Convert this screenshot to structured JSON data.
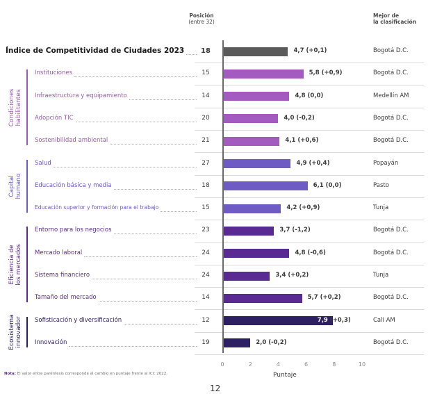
{
  "header": {
    "position_title": "Posición",
    "position_subtitle": "(entre 32)",
    "best_title_1": "Mejor de",
    "best_title_2": "la clasificación"
  },
  "groups": [
    {
      "label_1": "Condiciones",
      "label_2": "habilitantes",
      "color": "#9b59b6"
    },
    {
      "label_1": "Capital",
      "label_2": "humano",
      "color": "#6a5acd"
    },
    {
      "label_1": "Eficiencia de",
      "label_2": "los mercados",
      "color": "#5b2c8f"
    },
    {
      "label_1": "Ecosistema",
      "label_2": "innovador",
      "color": "#2a1d5c"
    }
  ],
  "chart_data": {
    "type": "bar",
    "orientation": "horizontal",
    "xlabel": "Puntaje",
    "xlim": [
      0,
      10
    ],
    "xticks": [
      0,
      2,
      4,
      6,
      8,
      10
    ],
    "rows": [
      {
        "label": "Índice de Competitividad de Ciudades 2023",
        "rank": "18",
        "value": 4.7,
        "value_text": "4,7",
        "change": "(+0,1)",
        "best": "Bogotá D.C.",
        "color": "#5a5a5a",
        "label_color": "#1a1a1a",
        "bold": true
      },
      {
        "label": "Instituciones",
        "rank": "15",
        "value": 5.8,
        "value_text": "5,8",
        "change": "(+0,9)",
        "best": "Bogotá D.C.",
        "color": "#a45bc0",
        "label_color": "#9b59b6"
      },
      {
        "label": "Infraestructura y equipamiento",
        "rank": "14",
        "value": 4.8,
        "value_text": "4,8",
        "change": "(0,0)",
        "best": "Medellín AM",
        "color": "#a45bc0",
        "label_color": "#9b59b6"
      },
      {
        "label": "Adopción TIC",
        "rank": "20",
        "value": 4.0,
        "value_text": "4,0",
        "change": "(-0,2)",
        "best": "Bogotá D.C.",
        "color": "#a45bc0",
        "label_color": "#9b59b6"
      },
      {
        "label": "Sostenibilidad ambiental",
        "rank": "21",
        "value": 4.1,
        "value_text": "4,1",
        "change": "(+0,6)",
        "best": "Bogotá D.C.",
        "color": "#a45bc0",
        "label_color": "#9b59b6"
      },
      {
        "label": "Salud",
        "rank": "27",
        "value": 4.9,
        "value_text": "4,9",
        "change": "(+0,4)",
        "best": "Popayán",
        "color": "#6e5bc4",
        "label_color": "#6a5acd"
      },
      {
        "label": "Educación básica y media",
        "rank": "18",
        "value": 6.1,
        "value_text": "6,1",
        "change": "(0,0)",
        "best": "Pasto",
        "color": "#6e5bc4",
        "label_color": "#6a5acd"
      },
      {
        "label": "Educación superior y formación para el trabajo",
        "rank": "15",
        "value": 4.2,
        "value_text": "4,2",
        "change": "(+0,9)",
        "best": "Tunja",
        "color": "#6e5bc4",
        "label_color": "#6a5acd"
      },
      {
        "label": "Entorno para los negocios",
        "rank": "23",
        "value": 3.7,
        "value_text": "3,7",
        "change": "(-1,2)",
        "best": "Bogotá D.C.",
        "color": "#5a2a93",
        "label_color": "#5b2c8f"
      },
      {
        "label": "Mercado laboral",
        "rank": "24",
        "value": 4.8,
        "value_text": "4,8",
        "change": "(-0,6)",
        "best": "Bogotá D.C.",
        "color": "#5a2a93",
        "label_color": "#5b2c8f"
      },
      {
        "label": "Sistema financiero",
        "rank": "24",
        "value": 3.4,
        "value_text": "3,4",
        "change": "(+0,2)",
        "best": "Tunja",
        "color": "#5a2a93",
        "label_color": "#5b2c8f"
      },
      {
        "label": "Tamaño del mercado",
        "rank": "14",
        "value": 5.7,
        "value_text": "5,7",
        "change": "(+0,2)",
        "best": "Bogotá D.C.",
        "color": "#5a2a93",
        "label_color": "#5b2c8f"
      },
      {
        "label": "Sofisticación y diversificación",
        "rank": "12",
        "value": 7.9,
        "value_text": "7,9",
        "change": "(+0,3)",
        "best": "Cali AM",
        "color": "#2c1f63",
        "label_color": "#2a1d5c",
        "value_inside": true
      },
      {
        "label": "Innovación",
        "rank": "19",
        "value": 2.0,
        "value_text": "2,0",
        "change": "(-0,2)",
        "best": "Bogotá D.C.",
        "color": "#2c1f63",
        "label_color": "#2a1d5c"
      }
    ]
  },
  "footnote_bold": "Nota:",
  "footnote": "El valor entre paréntesis corresponde al cambio en puntaje frente al ICC 2022.",
  "page_number": "12"
}
